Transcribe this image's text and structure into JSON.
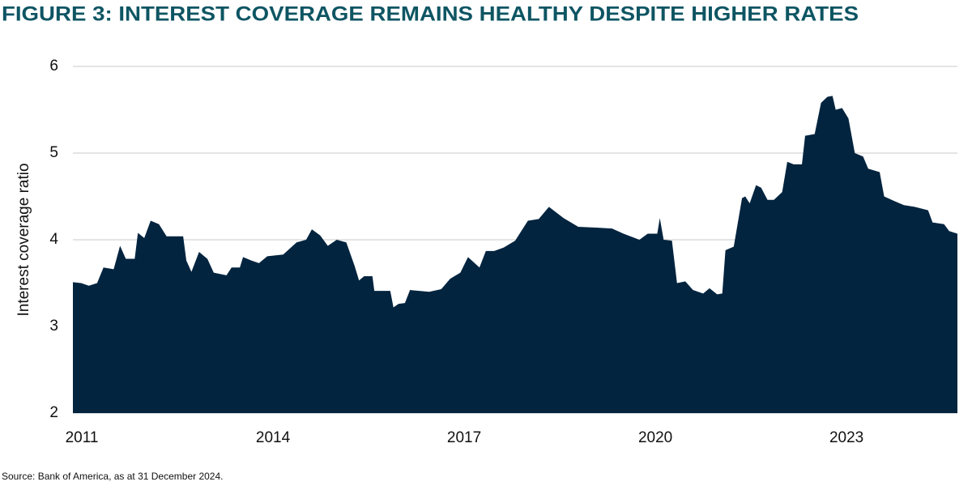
{
  "chart_data": {
    "type": "area",
    "title": "FIGURE 3: INTEREST COVERAGE REMAINS HEALTHY DESPITE HIGHER RATES",
    "y_label": "Interest coverage ratio",
    "source": "Source: Bank of America, as at 31 December 2024.",
    "color": "#02243f",
    "grid": true,
    "xlim": [
      2010.86,
      2024.74
    ],
    "xticks": [
      2011,
      2014,
      2017,
      2020,
      2023
    ],
    "ylim": [
      2,
      6
    ],
    "yticks": [
      2,
      3,
      4,
      5,
      6
    ],
    "x": [
      2010.86,
      2010.99,
      2011.11,
      2011.24,
      2011.34,
      2011.5,
      2011.6,
      2011.69,
      2011.83,
      2011.88,
      2011.98,
      2012.08,
      2012.21,
      2012.33,
      2012.59,
      2012.64,
      2012.72,
      2012.84,
      2012.97,
      2013.07,
      2013.27,
      2013.35,
      2013.48,
      2013.53,
      2013.66,
      2013.78,
      2013.91,
      2014.16,
      2014.37,
      2014.52,
      2014.61,
      2014.74,
      2014.86,
      2015.0,
      2015.15,
      2015.28,
      2015.35,
      2015.43,
      2015.56,
      2015.59,
      2015.84,
      2015.89,
      2015.97,
      2016.07,
      2016.15,
      2016.45,
      2016.64,
      2016.78,
      2016.94,
      2017.06,
      2017.24,
      2017.34,
      2017.47,
      2017.62,
      2017.8,
      2018.0,
      2018.17,
      2018.33,
      2018.56,
      2018.79,
      2019.07,
      2019.32,
      2019.5,
      2019.75,
      2019.88,
      2020.03,
      2020.07,
      2020.13,
      2020.26,
      2020.34,
      2020.47,
      2020.59,
      2020.75,
      2020.85,
      2020.97,
      2021.05,
      2021.1,
      2021.23,
      2021.36,
      2021.41,
      2021.48,
      2021.58,
      2021.66,
      2021.76,
      2021.86,
      2021.99,
      2022.07,
      2022.17,
      2022.3,
      2022.35,
      2022.5,
      2022.6,
      2022.7,
      2022.78,
      2022.83,
      2022.93,
      2023.03,
      2023.13,
      2023.26,
      2023.34,
      2023.52,
      2023.59,
      2023.74,
      2023.9,
      2024.07,
      2024.28,
      2024.35,
      2024.53,
      2024.61,
      2024.74
    ],
    "values": [
      3.51,
      3.5,
      3.47,
      3.5,
      3.68,
      3.66,
      3.93,
      3.78,
      3.78,
      4.08,
      4.02,
      4.22,
      4.18,
      4.04,
      4.04,
      3.76,
      3.63,
      3.86,
      3.78,
      3.62,
      3.59,
      3.68,
      3.68,
      3.8,
      3.76,
      3.73,
      3.81,
      3.83,
      3.97,
      4.0,
      4.12,
      4.05,
      3.93,
      4.0,
      3.97,
      3.7,
      3.53,
      3.58,
      3.58,
      3.41,
      3.41,
      3.22,
      3.26,
      3.27,
      3.42,
      3.4,
      3.43,
      3.55,
      3.62,
      3.8,
      3.68,
      3.87,
      3.87,
      3.91,
      3.99,
      4.22,
      4.24,
      4.38,
      4.25,
      4.15,
      4.14,
      4.13,
      4.07,
      4.0,
      4.07,
      4.07,
      4.25,
      4.0,
      3.99,
      3.5,
      3.52,
      3.42,
      3.38,
      3.44,
      3.37,
      3.38,
      3.88,
      3.92,
      4.48,
      4.5,
      4.42,
      4.63,
      4.6,
      4.46,
      4.46,
      4.55,
      4.9,
      4.87,
      4.87,
      5.2,
      5.22,
      5.58,
      5.65,
      5.66,
      5.5,
      5.52,
      5.4,
      5.0,
      4.96,
      4.82,
      4.78,
      4.5,
      4.45,
      4.4,
      4.38,
      4.34,
      4.2,
      4.18,
      4.1,
      4.07
    ]
  }
}
